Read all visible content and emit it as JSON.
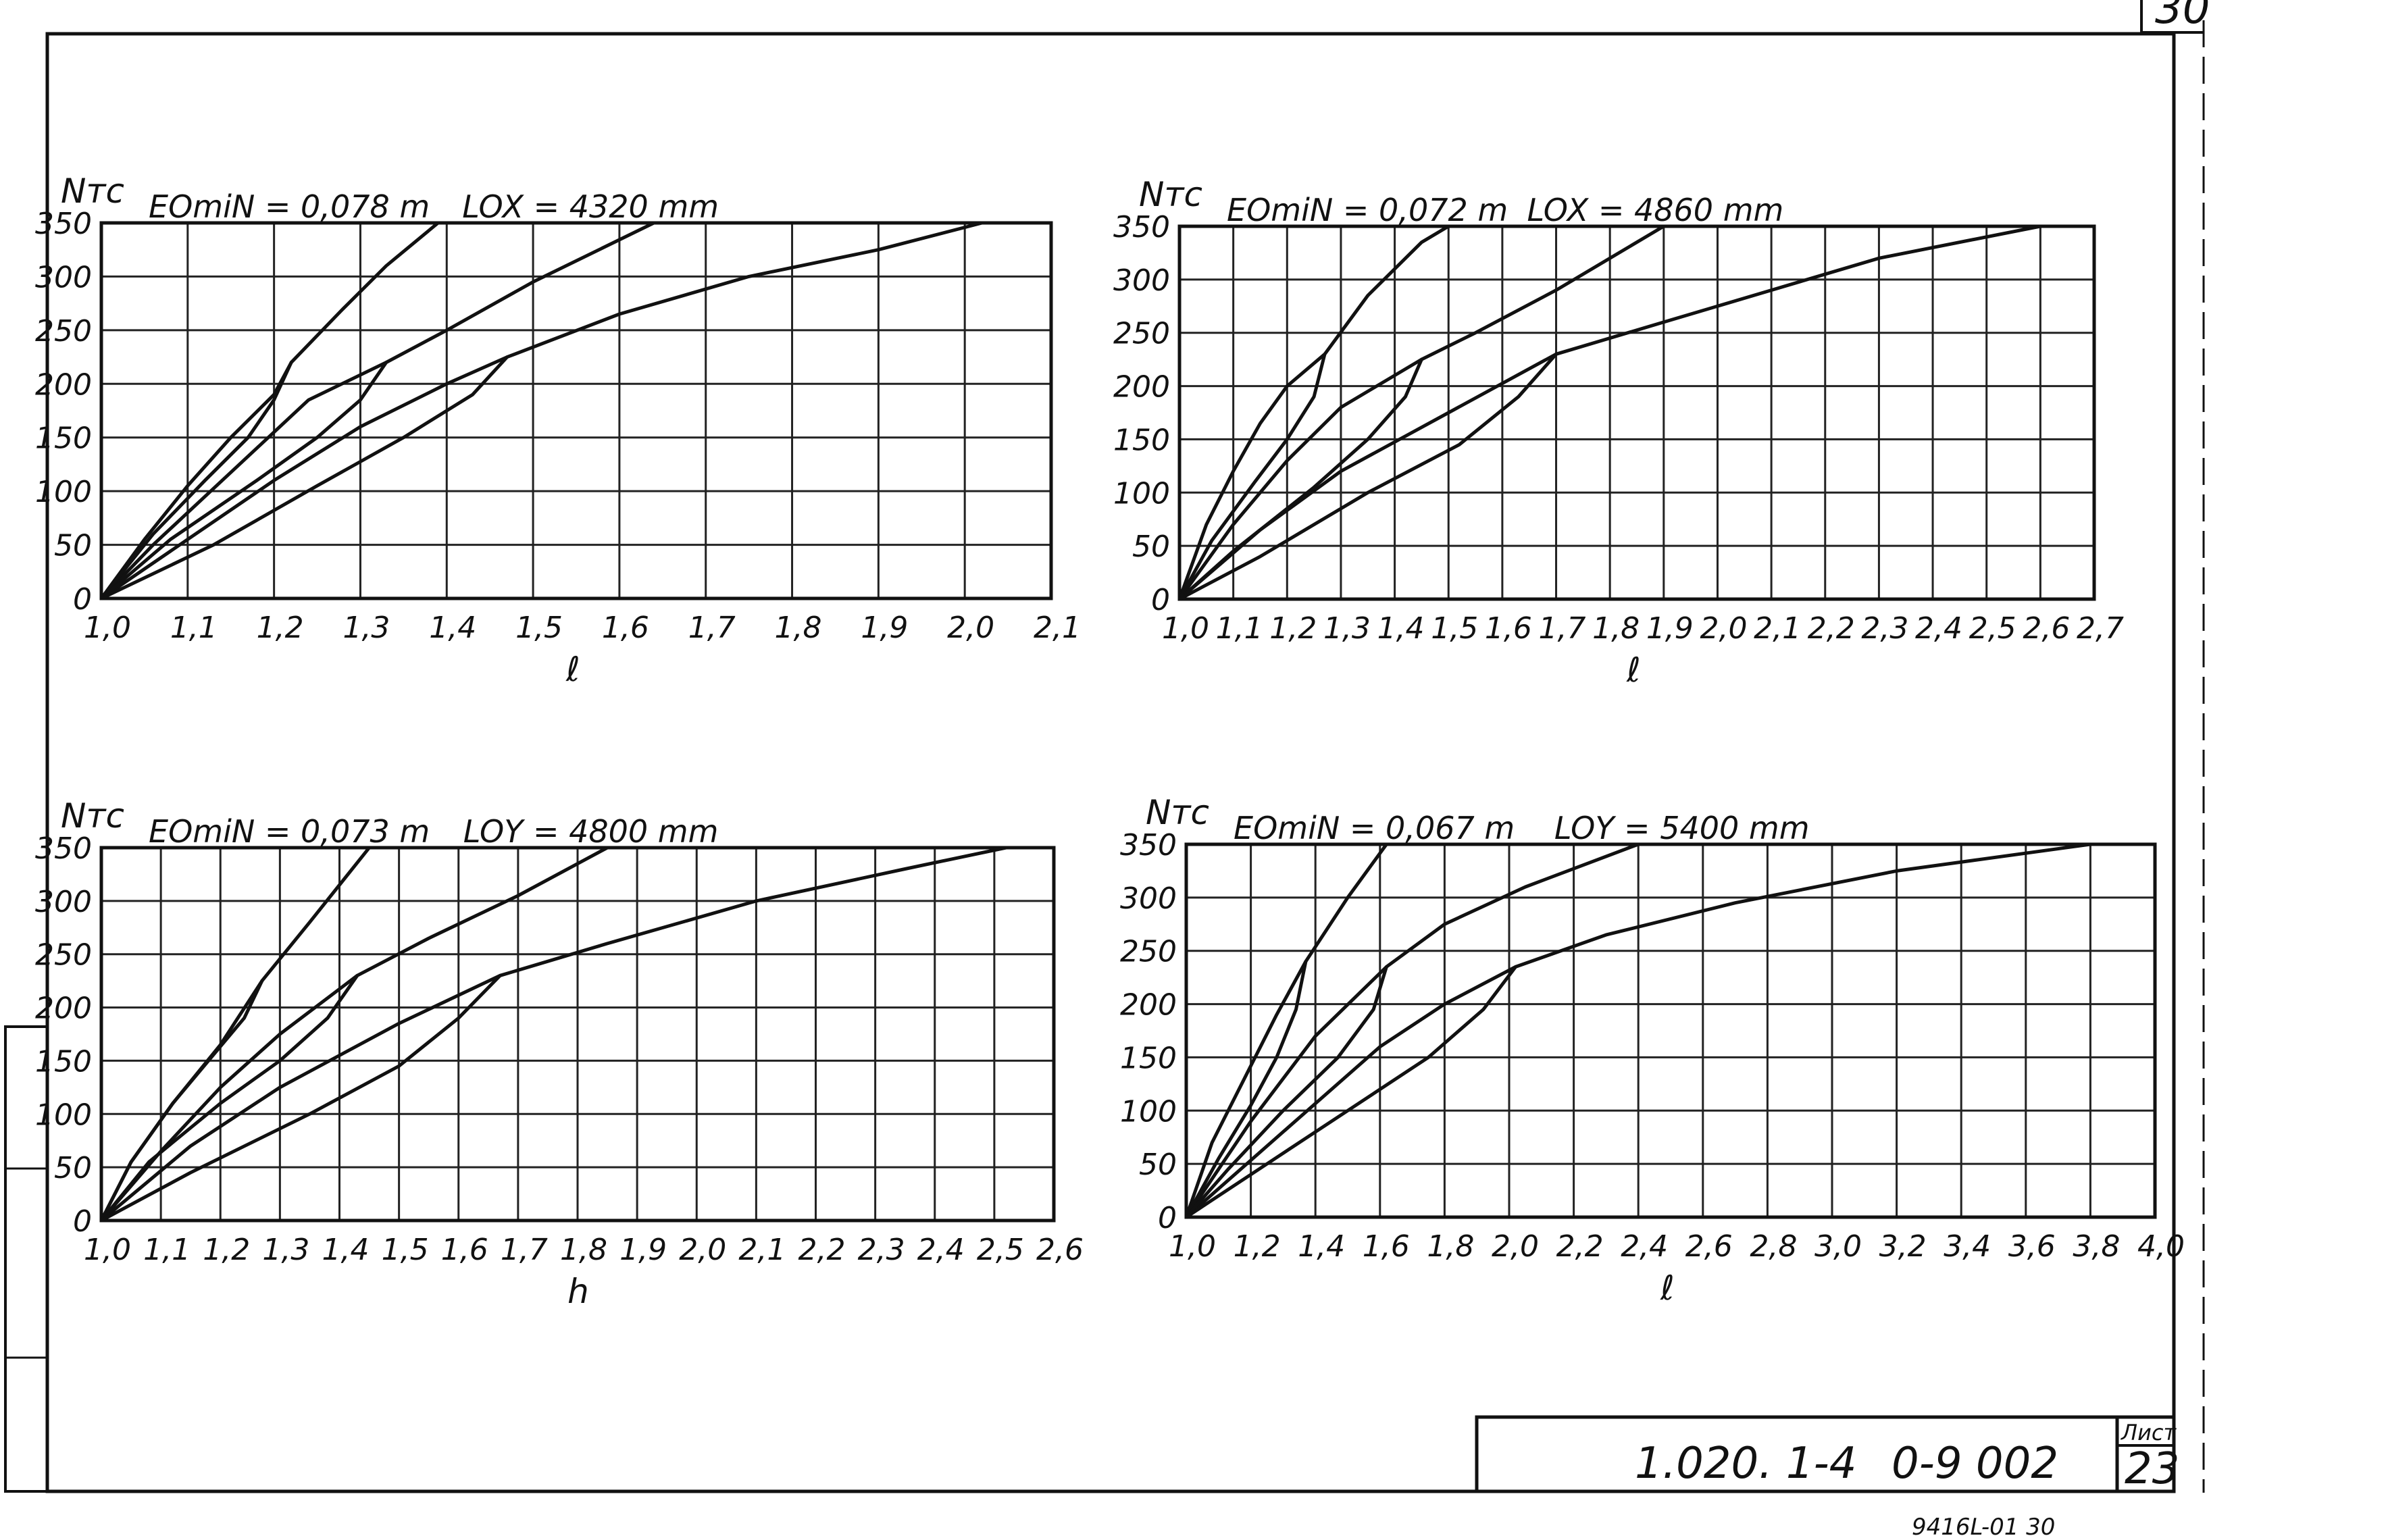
{
  "sheet": {
    "corner_mark": "30",
    "doc_number": "1.020. 1-4",
    "doc_code": "0-9 002",
    "sheet_label": "Лист",
    "sheet_number": "23",
    "bottom_note": "9416L-01   30"
  },
  "chart_data": [
    {
      "type": "line",
      "header_left": "EOmiN = 0,078 m",
      "header_right": "LOX = 4320 mm",
      "ylabel": "Nтс",
      "xlabel": "ℓ",
      "xlim": [
        1.0,
        2.1
      ],
      "ylim": [
        0,
        350
      ],
      "x_ticks": [
        "1,0",
        "1,1",
        "1,2",
        "1,3",
        "1,4",
        "1,5",
        "1,6",
        "1,7",
        "1,8",
        "1,9",
        "2,0",
        "2,1"
      ],
      "y_ticks": [
        "0",
        "50",
        "100",
        "150",
        "200",
        "250",
        "300",
        "350"
      ],
      "grid": true,
      "series": [
        {
          "points": [
            [
              1.0,
              0
            ],
            [
              1.05,
              55
            ],
            [
              1.1,
              105
            ],
            [
              1.15,
              150
            ],
            [
              1.2,
              190
            ],
            [
              1.22,
              220
            ],
            [
              1.28,
              270
            ],
            [
              1.33,
              310
            ],
            [
              1.39,
              350
            ]
          ]
        },
        {
          "points": [
            [
              1.0,
              0
            ],
            [
              1.06,
              50
            ],
            [
              1.12,
              95
            ],
            [
              1.18,
              140
            ],
            [
              1.24,
              185
            ],
            [
              1.33,
              220
            ],
            [
              1.4,
              250
            ],
            [
              1.5,
              295
            ],
            [
              1.64,
              350
            ]
          ]
        },
        {
          "points": [
            [
              1.0,
              0
            ],
            [
              1.1,
              55
            ],
            [
              1.2,
              110
            ],
            [
              1.3,
              160
            ],
            [
              1.4,
              200
            ],
            [
              1.47,
              225
            ],
            [
              1.6,
              265
            ],
            [
              1.75,
              300
            ],
            [
              1.9,
              325
            ],
            [
              2.02,
              350
            ]
          ]
        },
        {
          "points": [
            [
              1.22,
              220
            ],
            [
              1.2,
              185
            ],
            [
              1.17,
              150
            ],
            [
              1.12,
              110
            ],
            [
              1.06,
              60
            ],
            [
              1.0,
              0
            ]
          ]
        },
        {
          "points": [
            [
              1.33,
              220
            ],
            [
              1.3,
              185
            ],
            [
              1.25,
              150
            ],
            [
              1.18,
              110
            ],
            [
              1.08,
              55
            ],
            [
              1.0,
              0
            ]
          ]
        },
        {
          "points": [
            [
              1.47,
              225
            ],
            [
              1.43,
              190
            ],
            [
              1.35,
              150
            ],
            [
              1.25,
              105
            ],
            [
              1.13,
              50
            ],
            [
              1.0,
              0
            ]
          ]
        }
      ]
    },
    {
      "type": "line",
      "header_left": "EOmiN = 0,072 m",
      "header_right": "LOX = 4860 mm",
      "ylabel": "Nтс",
      "xlabel": "ℓ",
      "xlim": [
        1.0,
        2.7
      ],
      "ylim": [
        0,
        350
      ],
      "x_ticks": [
        "1,0",
        "1,1",
        "1,2",
        "1,3",
        "1,4",
        "1,5",
        "1,6",
        "1,7",
        "1,8",
        "1,9",
        "2,0",
        "2,1",
        "2,2",
        "2,3",
        "2,4",
        "2,5",
        "2,6",
        "2,7"
      ],
      "y_ticks": [
        "0",
        "50",
        "100",
        "150",
        "200",
        "250",
        "300",
        "350"
      ],
      "grid": true,
      "series": [
        {
          "points": [
            [
              1.0,
              0
            ],
            [
              1.05,
              70
            ],
            [
              1.1,
              120
            ],
            [
              1.15,
              165
            ],
            [
              1.2,
              200
            ],
            [
              1.27,
              230
            ],
            [
              1.35,
              285
            ],
            [
              1.45,
              335
            ],
            [
              1.5,
              350
            ]
          ]
        },
        {
          "points": [
            [
              1.0,
              0
            ],
            [
              1.1,
              70
            ],
            [
              1.2,
              130
            ],
            [
              1.3,
              180
            ],
            [
              1.45,
              225
            ],
            [
              1.55,
              250
            ],
            [
              1.7,
              290
            ],
            [
              1.9,
              350
            ]
          ]
        },
        {
          "points": [
            [
              1.0,
              0
            ],
            [
              1.15,
              65
            ],
            [
              1.3,
              120
            ],
            [
              1.5,
              175
            ],
            [
              1.7,
              230
            ],
            [
              1.9,
              260
            ],
            [
              2.1,
              290
            ],
            [
              2.3,
              320
            ],
            [
              2.6,
              350
            ]
          ]
        },
        {
          "points": [
            [
              1.27,
              230
            ],
            [
              1.25,
              190
            ],
            [
              1.2,
              150
            ],
            [
              1.14,
              110
            ],
            [
              1.06,
              55
            ],
            [
              1.0,
              0
            ]
          ]
        },
        {
          "points": [
            [
              1.45,
              225
            ],
            [
              1.42,
              190
            ],
            [
              1.35,
              150
            ],
            [
              1.25,
              105
            ],
            [
              1.1,
              45
            ],
            [
              1.0,
              0
            ]
          ]
        },
        {
          "points": [
            [
              1.7,
              230
            ],
            [
              1.63,
              190
            ],
            [
              1.52,
              145
            ],
            [
              1.35,
              100
            ],
            [
              1.15,
              40
            ],
            [
              1.0,
              0
            ]
          ]
        }
      ]
    },
    {
      "type": "line",
      "header_left": "EOmiN = 0,073 m",
      "header_right": "LOY = 4800 mm",
      "ylabel": "Nтс",
      "xlabel": "ℎ",
      "xlim": [
        1.0,
        2.6
      ],
      "ylim": [
        0,
        350
      ],
      "x_ticks": [
        "1,0",
        "1,1",
        "1,2",
        "1,3",
        "1,4",
        "1,5",
        "1,6",
        "1,7",
        "1,8",
        "1,9",
        "2,0",
        "2,1",
        "2,2",
        "2,3",
        "2,4",
        "2,5",
        "2,6"
      ],
      "y_ticks": [
        "0",
        "50",
        "100",
        "150",
        "200",
        "250",
        "300",
        "350"
      ],
      "grid": true,
      "series": [
        {
          "points": [
            [
              1.0,
              0
            ],
            [
              1.05,
              55
            ],
            [
              1.12,
              110
            ],
            [
              1.2,
              165
            ],
            [
              1.27,
              225
            ],
            [
              1.35,
              280
            ],
            [
              1.45,
              350
            ]
          ]
        },
        {
          "points": [
            [
              1.0,
              0
            ],
            [
              1.1,
              65
            ],
            [
              1.2,
              125
            ],
            [
              1.3,
              175
            ],
            [
              1.43,
              230
            ],
            [
              1.55,
              265
            ],
            [
              1.7,
              305
            ],
            [
              1.85,
              350
            ]
          ]
        },
        {
          "points": [
            [
              1.0,
              0
            ],
            [
              1.15,
              70
            ],
            [
              1.3,
              125
            ],
            [
              1.5,
              185
            ],
            [
              1.67,
              230
            ],
            [
              1.85,
              260
            ],
            [
              2.1,
              300
            ],
            [
              2.35,
              330
            ],
            [
              2.52,
              350
            ]
          ]
        },
        {
          "points": [
            [
              1.27,
              225
            ],
            [
              1.24,
              190
            ],
            [
              1.18,
              150
            ],
            [
              1.12,
              110
            ],
            [
              1.05,
              55
            ],
            [
              1.0,
              0
            ]
          ]
        },
        {
          "points": [
            [
              1.43,
              230
            ],
            [
              1.38,
              190
            ],
            [
              1.3,
              150
            ],
            [
              1.2,
              110
            ],
            [
              1.08,
              55
            ],
            [
              1.0,
              0
            ]
          ]
        },
        {
          "points": [
            [
              1.67,
              230
            ],
            [
              1.6,
              190
            ],
            [
              1.5,
              145
            ],
            [
              1.35,
              100
            ],
            [
              1.15,
              45
            ],
            [
              1.0,
              0
            ]
          ]
        }
      ]
    },
    {
      "type": "line",
      "header_left": "EOmiN = 0,067 m",
      "header_right": "LOY = 5400 mm",
      "ylabel": "Nтс",
      "xlabel": "ℓ",
      "xlim": [
        1.0,
        4.0
      ],
      "ylim": [
        0,
        350
      ],
      "x_ticks": [
        "1,0",
        "1,2",
        "1,4",
        "1,6",
        "1,8",
        "2,0",
        "2,2",
        "2,4",
        "2,6",
        "2,8",
        "3,0",
        "3,2",
        "3,4",
        "3,6",
        "3,8",
        "4,0"
      ],
      "y_ticks": [
        "0",
        "50",
        "100",
        "150",
        "200",
        "250",
        "300",
        "350"
      ],
      "grid": true,
      "series": [
        {
          "points": [
            [
              1.0,
              0
            ],
            [
              1.08,
              70
            ],
            [
              1.18,
              130
            ],
            [
              1.28,
              190
            ],
            [
              1.37,
              240
            ],
            [
              1.5,
              300
            ],
            [
              1.62,
              350
            ]
          ]
        },
        {
          "points": [
            [
              1.0,
              0
            ],
            [
              1.2,
              90
            ],
            [
              1.4,
              170
            ],
            [
              1.62,
              235
            ],
            [
              1.8,
              275
            ],
            [
              2.05,
              310
            ],
            [
              2.4,
              350
            ]
          ]
        },
        {
          "points": [
            [
              1.0,
              0
            ],
            [
              1.3,
              80
            ],
            [
              1.6,
              160
            ],
            [
              1.8,
              200
            ],
            [
              2.02,
              235
            ],
            [
              2.3,
              265
            ],
            [
              2.7,
              295
            ],
            [
              3.2,
              325
            ],
            [
              3.8,
              350
            ]
          ]
        },
        {
          "points": [
            [
              1.37,
              240
            ],
            [
              1.34,
              195
            ],
            [
              1.28,
              150
            ],
            [
              1.2,
              105
            ],
            [
              1.1,
              55
            ],
            [
              1.0,
              0
            ]
          ]
        },
        {
          "points": [
            [
              1.62,
              235
            ],
            [
              1.58,
              195
            ],
            [
              1.47,
              150
            ],
            [
              1.3,
              100
            ],
            [
              1.13,
              45
            ],
            [
              1.0,
              0
            ]
          ]
        },
        {
          "points": [
            [
              2.02,
              235
            ],
            [
              1.92,
              195
            ],
            [
              1.75,
              150
            ],
            [
              1.5,
              100
            ],
            [
              1.2,
              40
            ],
            [
              1.0,
              0
            ]
          ]
        }
      ]
    }
  ]
}
